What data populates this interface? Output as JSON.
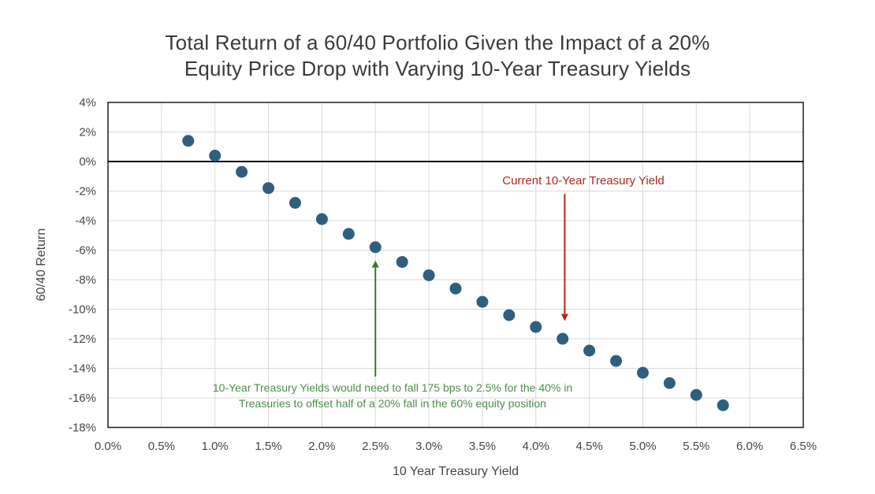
{
  "title": {
    "line1": "Total Return of a 60/40 Portfolio Given the Impact of a 20%",
    "line2": "Equity Price Drop with Varying 10-Year Treasury Yields"
  },
  "chart_data": {
    "type": "scatter",
    "title": "Total Return of a 60/40 Portfolio Given the Impact of a 20% Equity Price Drop with Varying 10-Year Treasury Yields",
    "xlabel": "10 Year Treasury Yield",
    "ylabel": "60/40 Return",
    "x": [
      0.75,
      1.0,
      1.25,
      1.5,
      1.75,
      2.0,
      2.25,
      2.5,
      2.75,
      3.0,
      3.25,
      3.5,
      3.75,
      4.0,
      4.25,
      4.5,
      4.75,
      5.0,
      5.25,
      5.5,
      5.75
    ],
    "y": [
      1.4,
      0.4,
      -0.7,
      -1.8,
      -2.8,
      -3.9,
      -4.9,
      -5.8,
      -6.8,
      -7.7,
      -8.6,
      -9.5,
      -10.4,
      -11.2,
      -12.0,
      -12.8,
      -13.5,
      -14.3,
      -15.0,
      -15.8,
      -16.5
    ],
    "xlim": [
      0,
      6.5
    ],
    "ylim": [
      -18,
      4
    ],
    "x_tick_values": [
      0,
      0.5,
      1.0,
      1.5,
      2.0,
      2.5,
      3.0,
      3.5,
      4.0,
      4.5,
      5.0,
      5.5,
      6.0,
      6.5
    ],
    "x_tick_labels": [
      "0.0%",
      "0.5%",
      "1.0%",
      "1.5%",
      "2.0%",
      "2.5%",
      "3.0%",
      "3.5%",
      "4.0%",
      "4.5%",
      "5.0%",
      "5.5%",
      "6.0%",
      "6.5%"
    ],
    "y_tick_values": [
      4,
      2,
      0,
      -2,
      -4,
      -6,
      -8,
      -10,
      -12,
      -14,
      -16,
      -18
    ],
    "y_tick_labels": [
      "4%",
      "2%",
      "0%",
      "-2%",
      "-4%",
      "-6%",
      "-8%",
      "-10%",
      "-12%",
      "-14%",
      "-16%",
      "-18%"
    ],
    "grid": true,
    "legend": "none",
    "point_color": "#2E5F7E",
    "annotations": [
      {
        "id": "current-yield",
        "text": "Current 10-Year Treasury Yield",
        "color": "#B3261E",
        "arrow": {
          "x": 4.27,
          "from_y": -2.2,
          "to_y": -10.8,
          "direction": "down"
        }
      },
      {
        "id": "offset-note",
        "lines": [
          "10-Year Treasury Yields would need to fall 175 bps to 2.5% for the 40% in",
          "Treasuries to offset half of a 20% fall in the 60% equity position"
        ],
        "color": "#4F8C4C",
        "arrow_color": "#3B7A2A",
        "arrow": {
          "x": 2.5,
          "from_y": -14.55,
          "to_y": -6.7,
          "direction": "up"
        }
      }
    ]
  },
  "colors": {
    "background": "#ffffff",
    "title_text": "#3a3a3a",
    "axis_text": "#464646",
    "gridline": "#d9d9d9",
    "plot_frame": "#1f1f1f",
    "zero_line": "#000000",
    "point": "#2E5F7E",
    "annotation_red": "#B3261E",
    "annotation_green": "#4F8C4C"
  }
}
